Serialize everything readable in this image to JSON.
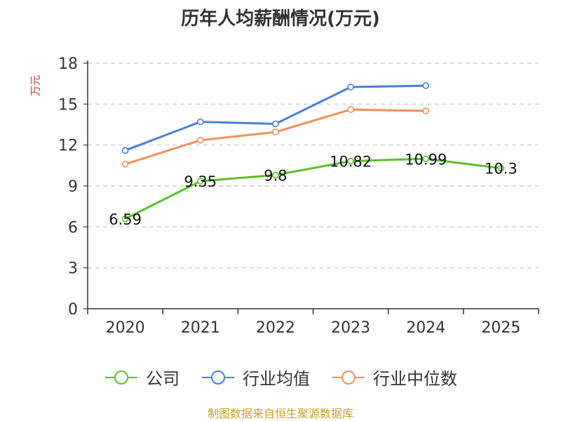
{
  "chart_data": {
    "type": "line",
    "title": "历年人均薪酬情况(万元)",
    "ylabel": "万元",
    "xlabel": "",
    "categories": [
      "2020",
      "2021",
      "2022",
      "2023",
      "2024",
      "2025"
    ],
    "ylim": [
      0,
      18
    ],
    "yticks": [
      0,
      3,
      6,
      9,
      12,
      15,
      18
    ],
    "grid": true,
    "legend_position": "bottom",
    "series": [
      {
        "name": "公司",
        "color": "#5ac02c",
        "values": [
          6.59,
          9.35,
          9.8,
          10.82,
          10.99,
          10.3
        ],
        "labels": [
          "6.59",
          "9.35",
          "9.8",
          "10.82",
          "10.99",
          "10.3"
        ]
      },
      {
        "name": "行业均值",
        "color": "#4b7fd6",
        "values": [
          11.6,
          13.7,
          13.55,
          16.25,
          16.35,
          null
        ]
      },
      {
        "name": "行业中位数",
        "color": "#f3905a",
        "values": [
          10.6,
          12.35,
          12.95,
          14.6,
          14.5,
          null
        ]
      }
    ]
  },
  "footer": "制图数据来自恒生聚源数据库"
}
